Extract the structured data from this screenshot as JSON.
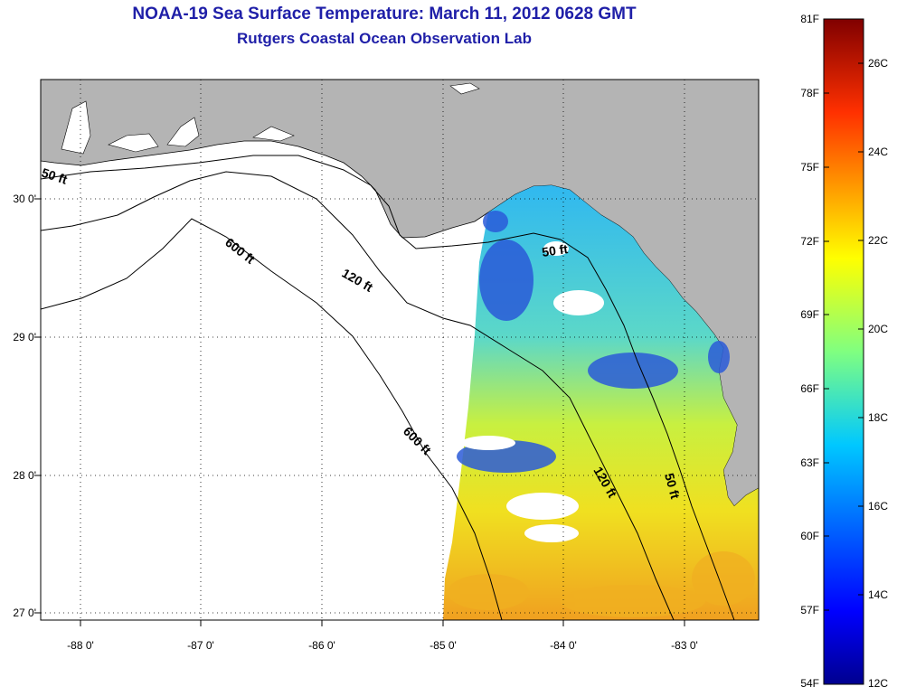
{
  "title": "NOAA-19 Sea Surface Temperature:  March 11, 2012 0628 GMT",
  "subtitle": "Rutgers Coastal Ocean Observation Lab",
  "lat_labels": [
    "30 0'",
    "29 0'",
    "28 0'",
    "27 0'"
  ],
  "lon_labels": [
    "-88 0'",
    "-87 0'",
    "-86 0'",
    "-85 0'",
    "-84 0'",
    "-83 0'"
  ],
  "contours": {
    "c50": "50 ft",
    "c120": "120 ft",
    "c600": "600 ft"
  },
  "colorbar": {
    "f_labels": [
      "81F",
      "78F",
      "75F",
      "72F",
      "69F",
      "66F",
      "63F",
      "60F",
      "57F",
      "54F"
    ],
    "c_labels": [
      "26C",
      "24C",
      "22C",
      "20C",
      "18C",
      "16C",
      "14C",
      "12C"
    ],
    "colors": [
      "#7f0000",
      "#ff0000",
      "#ff8000",
      "#ffff00",
      "#80ff80",
      "#00ffff",
      "#0080ff",
      "#0000ff",
      "#00008f"
    ]
  },
  "colors": {
    "land": "#b4b4b4",
    "cloud": "#ffffff",
    "title": "#1f1fa8"
  }
}
